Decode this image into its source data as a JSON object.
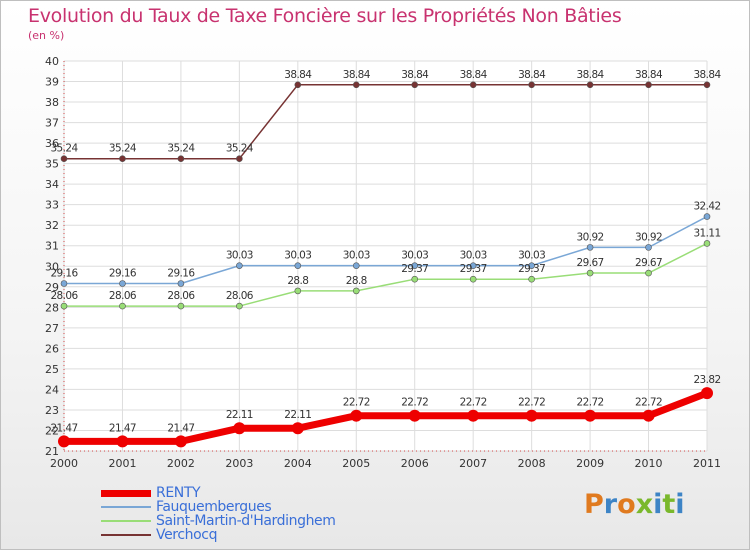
{
  "title": "Evolution du Taux de Taxe Foncière sur les Propriétés Non Bâties",
  "subtitle": "(en %)",
  "logo": {
    "text": "Proxiti",
    "colors": [
      "#e07a1f",
      "#3d84c6",
      "#e07a1f",
      "#7ab82c",
      "#3d84c6",
      "#7ab82c",
      "#3d84c6"
    ]
  },
  "chart_data": {
    "type": "line",
    "title": "Evolution du Taux de Taxe Foncière sur les Propriétés Non Bâties",
    "ylabel": "(en %)",
    "xlabel": "",
    "x": [
      "2000",
      "2001",
      "2002",
      "2003",
      "2004",
      "2005",
      "2006",
      "2007",
      "2008",
      "2009",
      "2010",
      "2011"
    ],
    "ylim": [
      21,
      40
    ],
    "yticks": [
      "21",
      "22",
      "23",
      "24",
      "25",
      "26",
      "27",
      "28",
      "29",
      "30",
      "31",
      "32",
      "33",
      "34",
      "35",
      "36",
      "37",
      "38",
      "39",
      "40"
    ],
    "grid": true,
    "legend": "bottom-left",
    "series": [
      {
        "name": "RENTY",
        "color": "#ee0000",
        "values": [
          21.47,
          21.47,
          21.47,
          22.11,
          22.11,
          22.72,
          22.72,
          22.72,
          22.72,
          22.72,
          22.72,
          23.82
        ],
        "labels": [
          "21.47",
          "21.47",
          "21.47",
          "22.11",
          "22.11",
          "22.72",
          "22.72",
          "22.72",
          "22.72",
          "22.72",
          "22.72",
          "23.82"
        ]
      },
      {
        "name": "Fauquembergues",
        "color": "#7aa7d6",
        "values": [
          29.16,
          29.16,
          29.16,
          30.03,
          30.03,
          30.03,
          30.03,
          30.03,
          30.03,
          30.92,
          30.92,
          32.42
        ],
        "labels": [
          "29.16",
          "29.16",
          "29.16",
          "30.03",
          "30.03",
          "30.03",
          "30.03",
          "30.03",
          "30.03",
          "30.92",
          "30.92",
          "32.42"
        ]
      },
      {
        "name": "Saint-Martin-d'Hardinghem",
        "color": "#99dd77",
        "values": [
          28.06,
          28.06,
          28.06,
          28.06,
          28.8,
          28.8,
          29.37,
          29.37,
          29.37,
          29.67,
          29.67,
          31.11
        ],
        "labels": [
          "28.06",
          "28.06",
          "28.06",
          "28.06",
          "28.8",
          "28.8",
          "29.37",
          "29.37",
          "29.37",
          "29.67",
          "29.67",
          "31.11"
        ]
      },
      {
        "name": "Verchocq",
        "color": "#773333",
        "values": [
          35.24,
          35.24,
          35.24,
          35.24,
          38.84,
          38.84,
          38.84,
          38.84,
          38.84,
          38.84,
          38.84,
          38.84
        ],
        "labels": [
          "35.24",
          "35.24",
          "35.24",
          "35.24",
          "38.84",
          "38.84",
          "38.84",
          "38.84",
          "38.84",
          "38.84",
          "38.84",
          "38.84"
        ]
      }
    ]
  }
}
